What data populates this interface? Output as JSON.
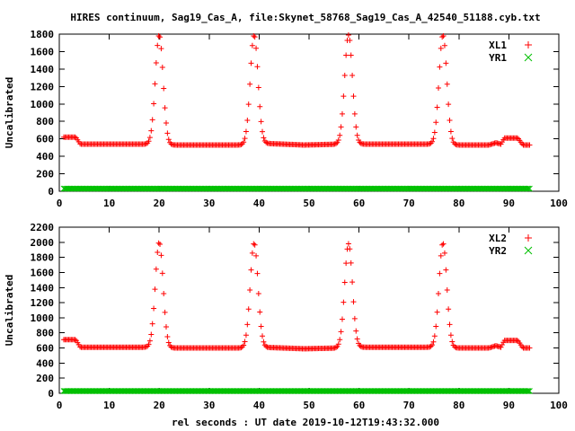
{
  "title": "HIRES continuum, Sag19_Cas_A, file:Skynet_58768_Sag19_Cas_A_42540_51188.cyb.txt",
  "xlabel": "rel seconds : UT date 2019-10-12T19:43:32.000",
  "chart_data": [
    {
      "type": "scatter",
      "ylabel": "Uncalibrated",
      "xlim": [
        0,
        100
      ],
      "ylim": [
        0,
        1800
      ],
      "xticks": [
        0,
        10,
        20,
        30,
        40,
        50,
        60,
        70,
        80,
        90,
        100
      ],
      "yticks": [
        0,
        200,
        400,
        600,
        800,
        1000,
        1200,
        1400,
        1600,
        1800
      ],
      "grid": false,
      "legend_position": "top-right",
      "series": [
        {
          "name": "XL1",
          "color": "#ff0000",
          "marker": "plus",
          "x_range": [
            0.9,
            94.2
          ],
          "sample_step": 0.25,
          "baseline": [
            [
              0.9,
              620
            ],
            [
              3.3,
              620
            ],
            [
              4.2,
              540
            ],
            [
              18.2,
              540
            ],
            [
              21.8,
              530
            ],
            [
              37.0,
              530
            ],
            [
              40.5,
              550
            ],
            [
              49.0,
              530
            ],
            [
              56.5,
              540
            ],
            [
              60.0,
              540
            ],
            [
              75.0,
              540
            ],
            [
              78.8,
              530
            ],
            [
              86.0,
              530
            ],
            [
              87.4,
              555
            ],
            [
              88.4,
              540
            ],
            [
              89.1,
              610
            ],
            [
              91.8,
              610
            ],
            [
              92.8,
              530
            ],
            [
              94.2,
              530
            ]
          ],
          "peaks": [
            {
              "x": 20.0,
              "peak": 1790,
              "width": 0.78
            },
            {
              "x": 39.0,
              "peak": 1790,
              "width": 0.78
            },
            {
              "x": 57.9,
              "peak": 1790,
              "width": 0.78
            },
            {
              "x": 76.8,
              "peak": 1790,
              "width": 0.78
            }
          ]
        },
        {
          "name": "YR1",
          "color": "#00c000",
          "marker": "cross",
          "x_range": [
            0.9,
            94.2
          ],
          "sample_step": 0.25,
          "constant": 30
        }
      ]
    },
    {
      "type": "scatter",
      "ylabel": "Uncalibrated",
      "xlim": [
        0,
        100
      ],
      "ylim": [
        0,
        2200
      ],
      "xticks": [
        0,
        10,
        20,
        30,
        40,
        50,
        60,
        70,
        80,
        90,
        100
      ],
      "yticks": [
        0,
        200,
        400,
        600,
        800,
        1000,
        1200,
        1400,
        1600,
        1800,
        2000,
        2200
      ],
      "grid": false,
      "legend_position": "top-right",
      "series": [
        {
          "name": "XL2",
          "color": "#ff0000",
          "marker": "plus",
          "x_range": [
            0.9,
            94.2
          ],
          "sample_step": 0.25,
          "baseline": [
            [
              0.9,
              710
            ],
            [
              3.3,
              710
            ],
            [
              4.2,
              610
            ],
            [
              18.2,
              610
            ],
            [
              21.8,
              600
            ],
            [
              37.0,
              600
            ],
            [
              40.5,
              610
            ],
            [
              49.0,
              590
            ],
            [
              56.5,
              600
            ],
            [
              60.0,
              610
            ],
            [
              75.0,
              610
            ],
            [
              78.8,
              600
            ],
            [
              86.0,
              600
            ],
            [
              87.4,
              630
            ],
            [
              88.4,
              610
            ],
            [
              89.1,
              700
            ],
            [
              91.8,
              700
            ],
            [
              92.8,
              600
            ],
            [
              94.2,
              600
            ]
          ],
          "peaks": [
            {
              "x": 20.0,
              "peak": 2000,
              "width": 0.78
            },
            {
              "x": 39.0,
              "peak": 1990,
              "width": 0.78
            },
            {
              "x": 57.9,
              "peak": 1980,
              "width": 0.78
            },
            {
              "x": 76.8,
              "peak": 1990,
              "width": 0.78
            }
          ]
        },
        {
          "name": "YR2",
          "color": "#00c000",
          "marker": "cross",
          "x_range": [
            0.9,
            94.2
          ],
          "sample_step": 0.25,
          "constant": 30
        }
      ]
    }
  ]
}
